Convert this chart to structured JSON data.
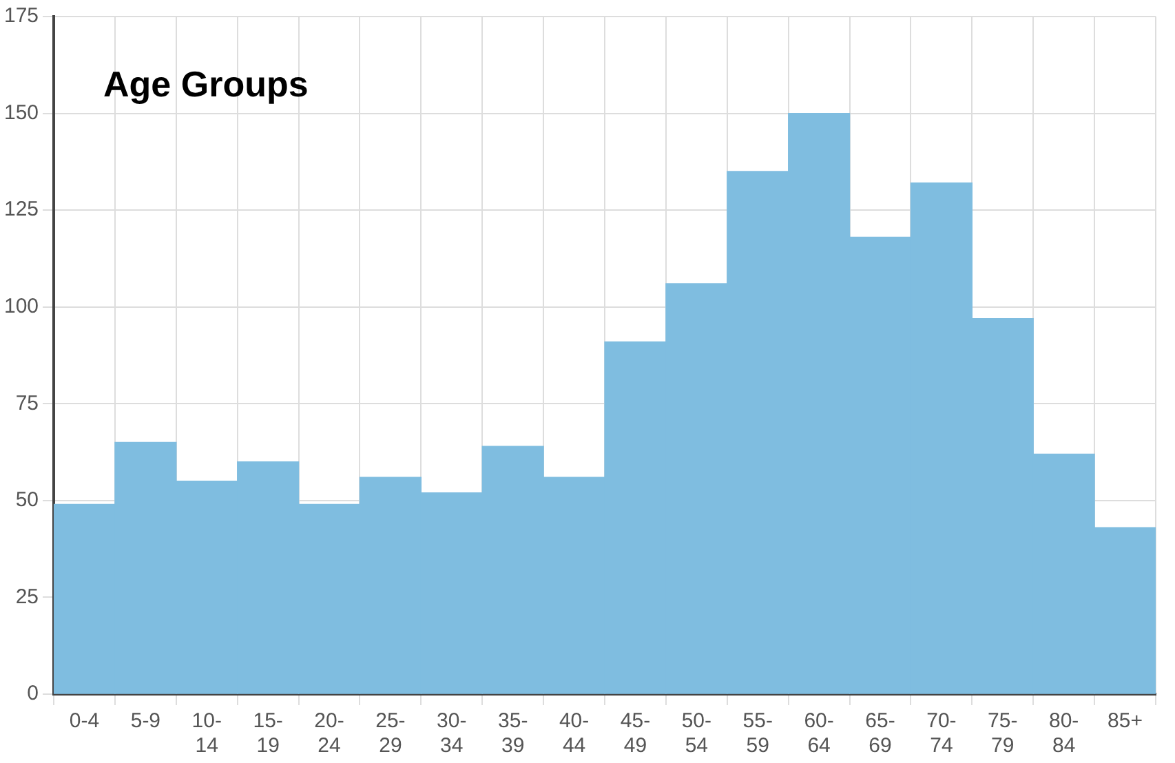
{
  "chart_data": {
    "type": "bar",
    "title": "Age Groups",
    "categories": [
      "0-4",
      "5-9",
      "10-14",
      "15-19",
      "20-24",
      "25-29",
      "30-34",
      "35-39",
      "40-44",
      "45-49",
      "50-54",
      "55-59",
      "60-64",
      "65-69",
      "70-74",
      "75-79",
      "80-84",
      "85+"
    ],
    "values": [
      49,
      65,
      55,
      60,
      49,
      56,
      52,
      64,
      56,
      91,
      106,
      135,
      150,
      118,
      132,
      97,
      62,
      43
    ],
    "color": "#7fbde0",
    "ylim": [
      0,
      175
    ],
    "yticks": [
      0,
      25,
      50,
      75,
      100,
      125,
      150,
      175
    ],
    "grid": true,
    "legend": false
  }
}
